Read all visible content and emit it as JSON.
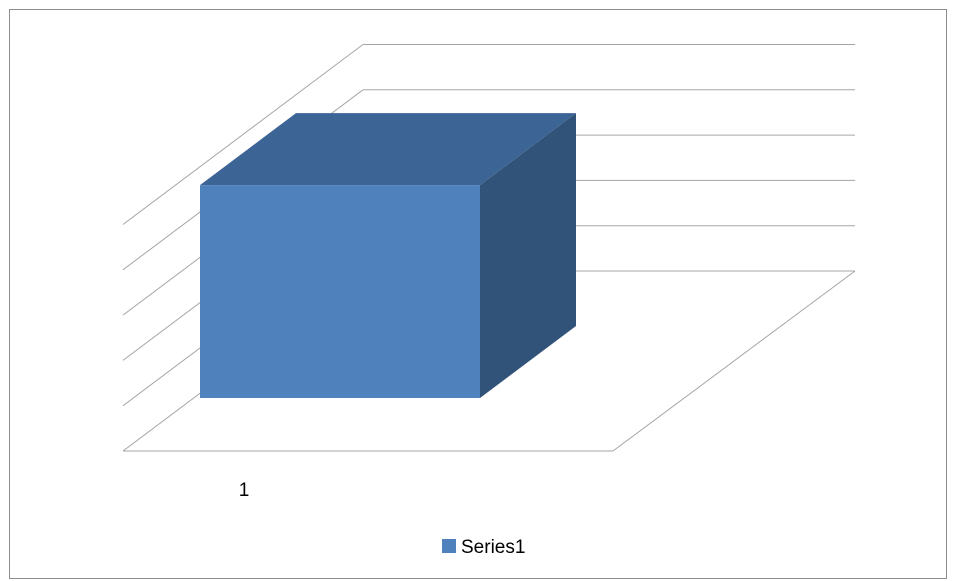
{
  "chart_data": {
    "type": "bar",
    "style": "3d-clustered-column",
    "categories": [
      "1"
    ],
    "series": [
      {
        "name": "Series1",
        "values": [
          4.7
        ],
        "color": "#4f81bd"
      }
    ],
    "ylim": [
      0,
      5
    ],
    "y_gridlines": [
      0,
      1,
      2,
      3,
      4,
      5
    ],
    "y_tick_labels_visible": false,
    "grid": true,
    "legend": {
      "position": "bottom"
    },
    "colors": {
      "front": "#4f81bd",
      "top": "#3c6494",
      "side": "#325379",
      "gridline": "#a6a6a6",
      "frame": "#8c8c8c"
    }
  }
}
